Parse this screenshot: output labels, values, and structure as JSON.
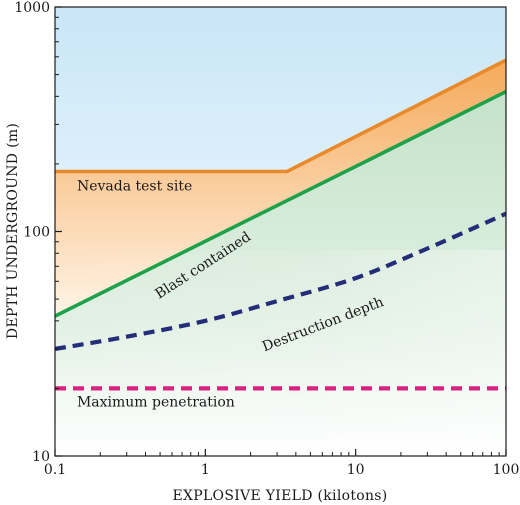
{
  "chart_data": {
    "type": "line",
    "title": "",
    "xlabel": "EXPLOSIVE YIELD (kilotons)",
    "ylabel": "DEPTH UNDERGROUND (m)",
    "x_scale": "log",
    "y_scale": "log",
    "xlim": [
      0.1,
      100
    ],
    "ylim": [
      10,
      1000
    ],
    "x_ticks": [
      "0.1",
      "1",
      "10",
      "100"
    ],
    "y_ticks": [
      "10",
      "100",
      "1000"
    ],
    "grid": false,
    "legend": "none",
    "series": [
      {
        "name": "Nevada test site",
        "style": "solid",
        "color": "#e8892a",
        "points": [
          [
            0.1,
            185
          ],
          [
            3.5,
            185
          ],
          [
            100,
            580
          ]
        ]
      },
      {
        "name": "Blast contained",
        "style": "solid",
        "color": "#1fa04a",
        "points": [
          [
            0.1,
            42
          ],
          [
            100,
            420
          ]
        ]
      },
      {
        "name": "Destruction depth",
        "style": "dashed",
        "color": "#232d78",
        "points": [
          [
            0.1,
            30
          ],
          [
            0.3,
            34
          ],
          [
            1,
            40
          ],
          [
            3,
            49
          ],
          [
            10,
            62
          ],
          [
            30,
            84
          ],
          [
            100,
            120
          ]
        ]
      },
      {
        "name": "Maximum penetration",
        "style": "dashed",
        "color": "#d6237f",
        "points": [
          [
            0.1,
            20
          ],
          [
            100,
            20
          ]
        ]
      }
    ],
    "fills": {
      "sky_top": "#cfe9f7",
      "orange_band": "#f6b46a",
      "green_region": "#cfe6d2"
    }
  }
}
